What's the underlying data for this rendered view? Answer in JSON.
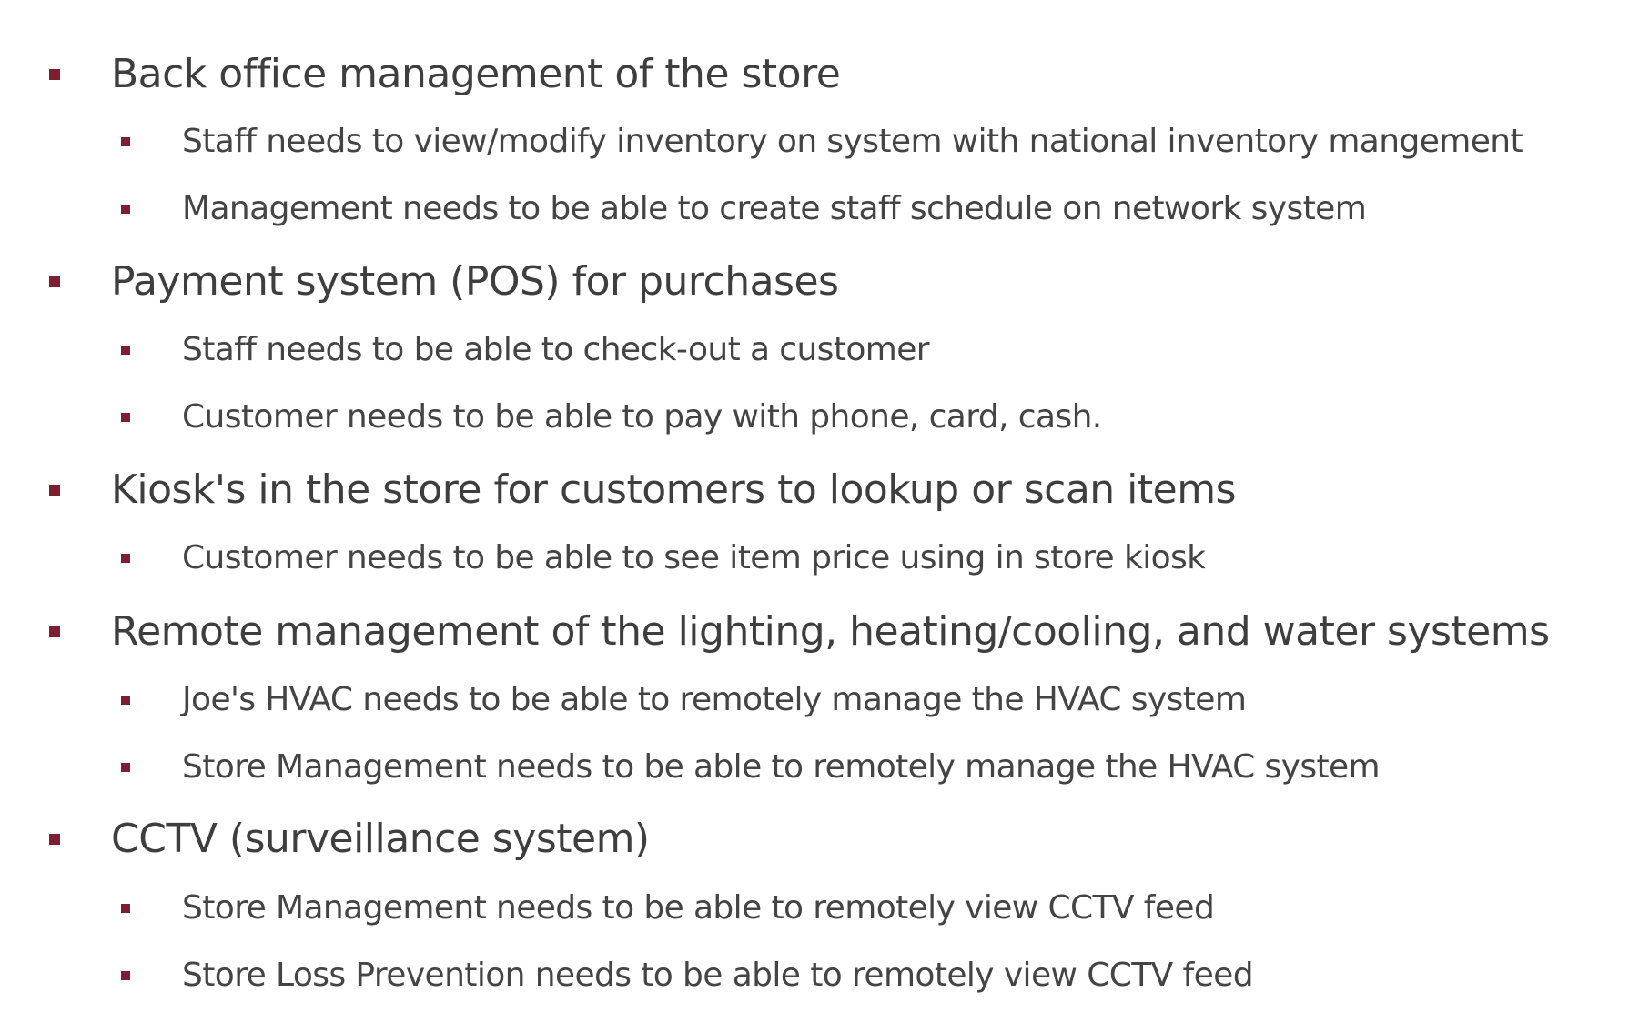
{
  "bullets": [
    {
      "text": "Back office management of the store"
    },
    {
      "text": "Staff needs to view/modify inventory on system with national inventory mangement"
    },
    {
      "text": "Management needs to be able to create staff schedule on network system"
    },
    {
      "text": "Payment system (POS) for purchases"
    },
    {
      "text": "Staff needs to be able to check-out a customer"
    },
    {
      "text": "Customer needs to be able to pay with phone, card, cash."
    },
    {
      "text": "Kiosk's in the store for customers to lookup or scan items"
    },
    {
      "text": "Customer needs to be able to see item price using in store kiosk"
    },
    {
      "text": "Remote management of the lighting, heating/cooling, and water systems"
    },
    {
      "text": "Joe's HVAC needs to be able to remotely manage the HVAC system"
    },
    {
      "text": "Store Management needs to be able to remotely manage the HVAC system"
    },
    {
      "text": "CCTV (surveillance system)"
    },
    {
      "text": "Store Management needs to be able to remotely view CCTV feed"
    },
    {
      "text": "Store Loss Prevention needs to be able to remotely view CCTV feed"
    }
  ],
  "colors": {
    "bullet": "#7d1f33",
    "text": "#3f3f3f"
  }
}
